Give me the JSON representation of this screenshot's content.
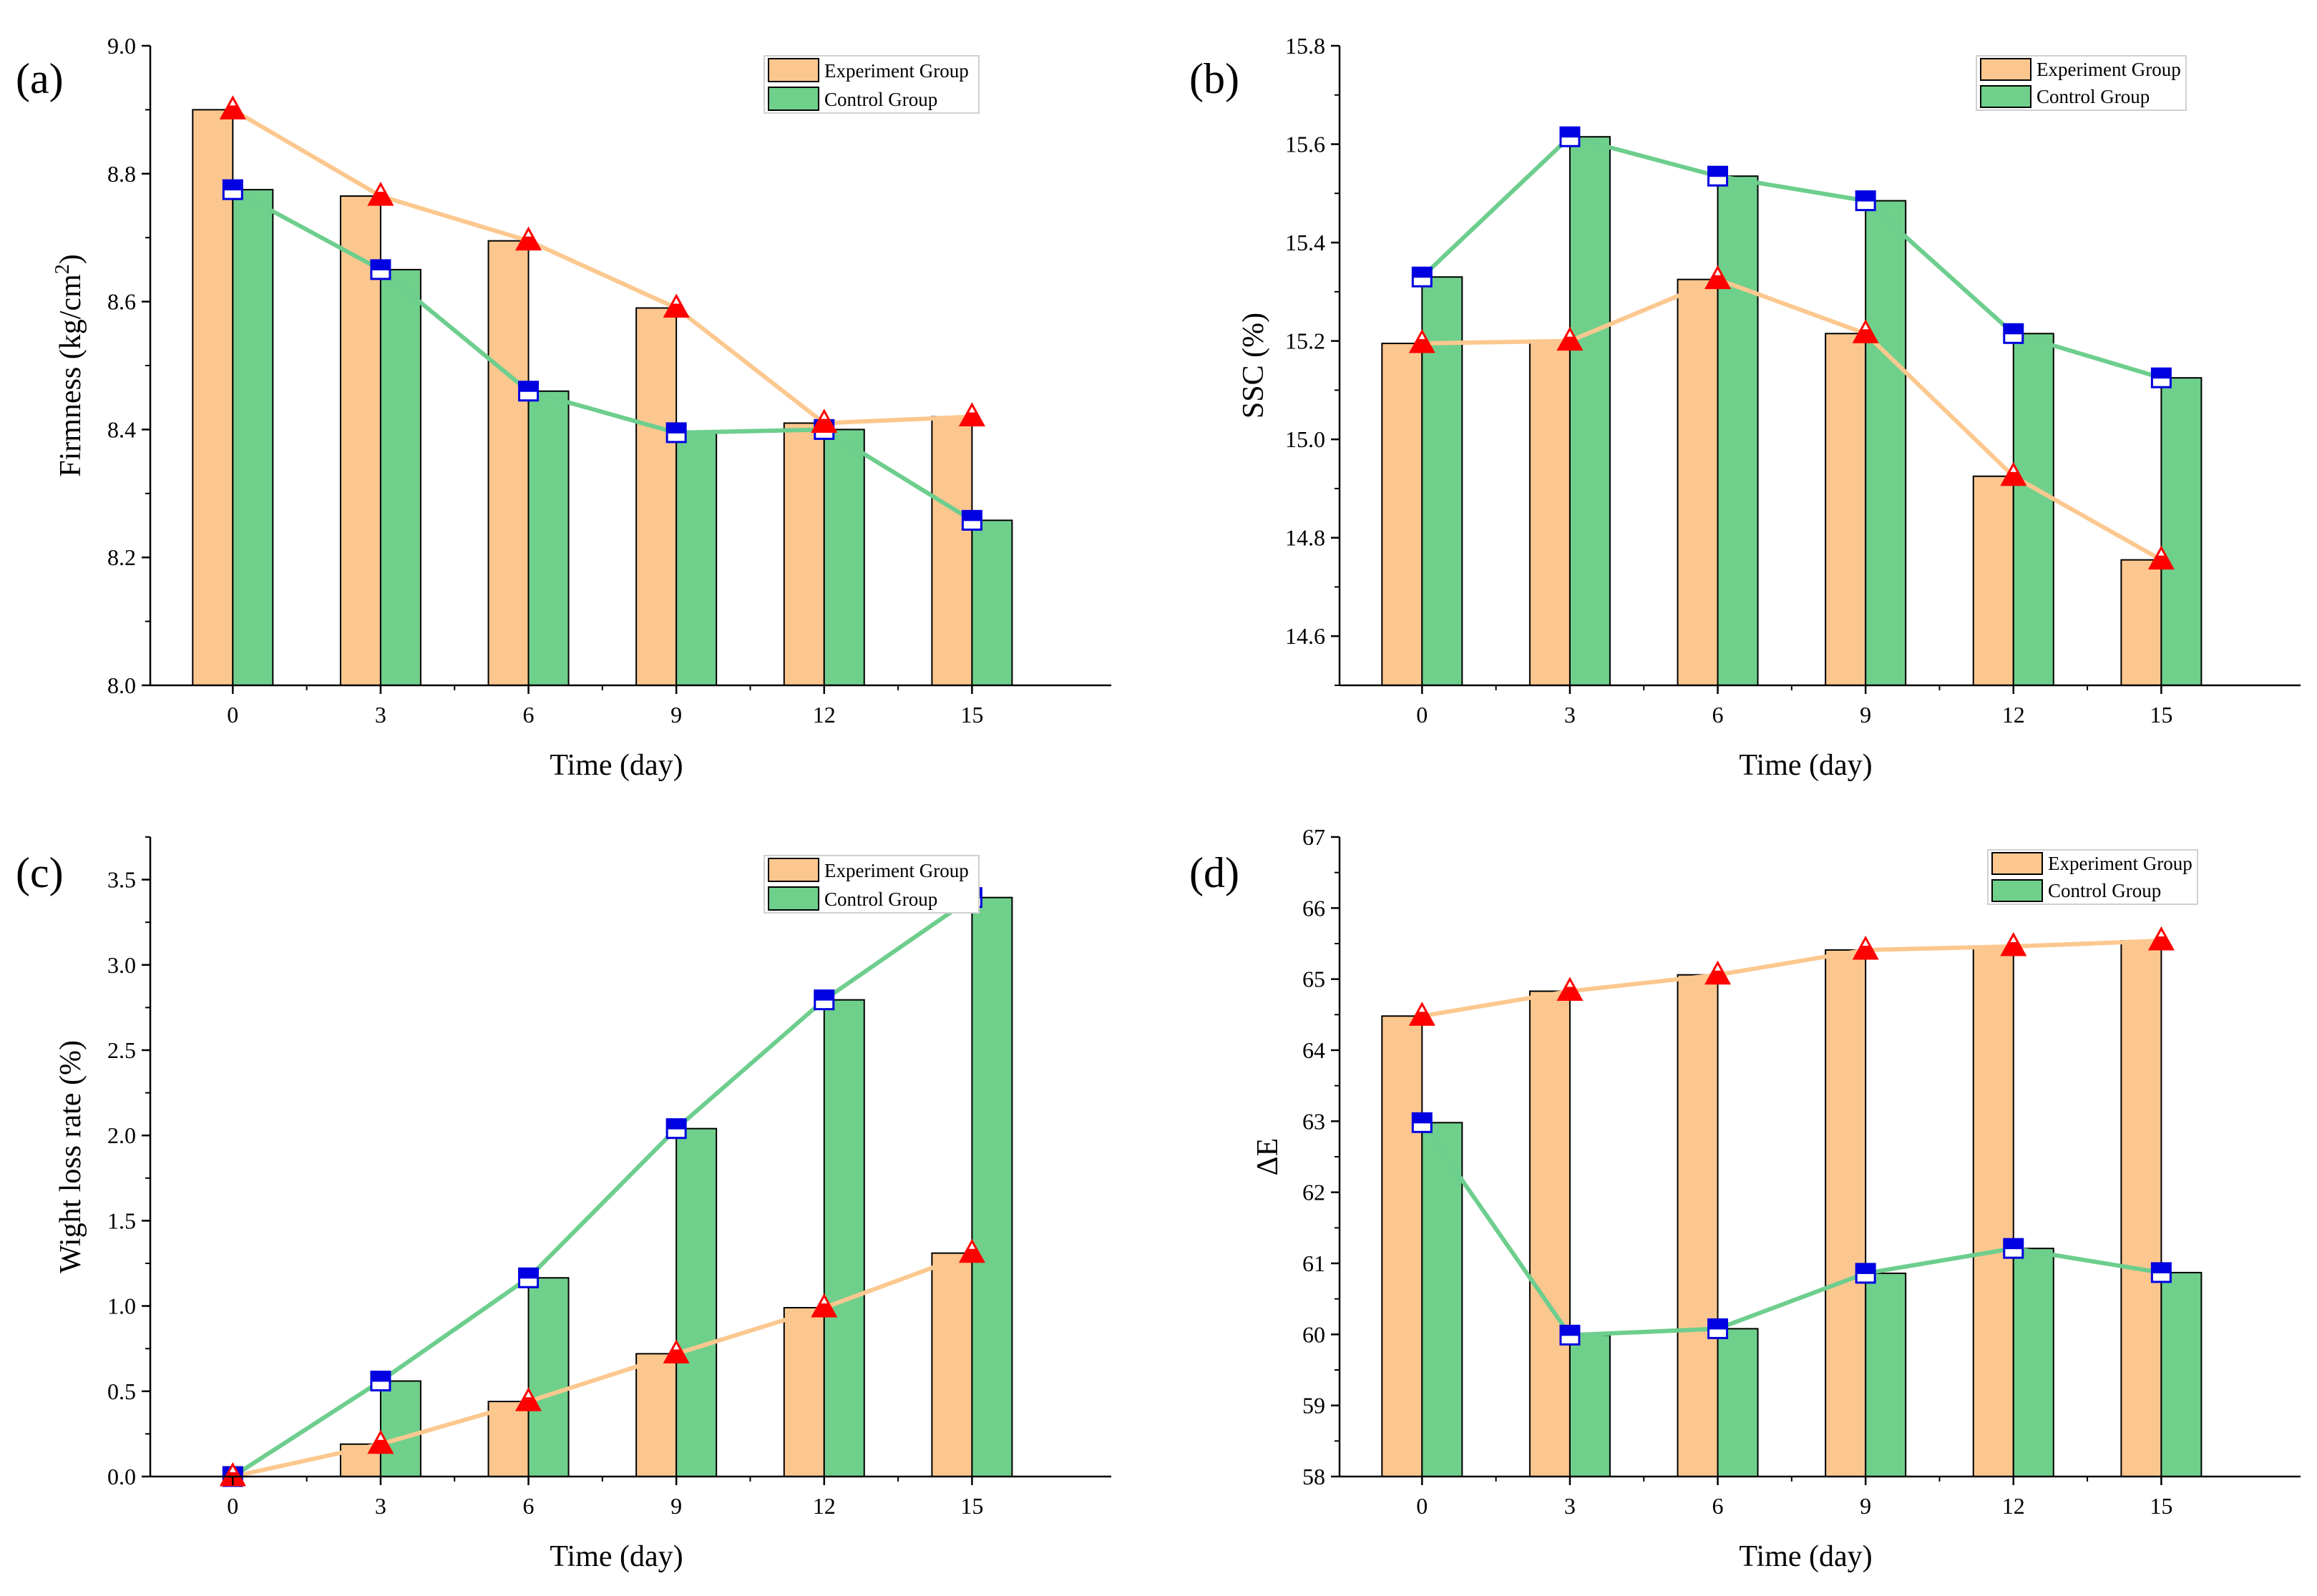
{
  "colors": {
    "experiment": "#fcc78f",
    "control": "#6fd08c",
    "experiment_line": "#fcc88f",
    "control_line": "#6dce8d",
    "triangle": "#ff0000",
    "square": "#0000e0"
  },
  "chart_data": [
    {
      "type": "bar",
      "panel_label": "(a)",
      "categories": [
        "0",
        "3",
        "6",
        "9",
        "12",
        "15"
      ],
      "series": [
        {
          "name": "Experiment Group",
          "values": [
            8.9,
            8.765,
            8.695,
            8.59,
            8.41,
            8.42
          ]
        },
        {
          "name": "Control Group",
          "values": [
            8.775,
            8.65,
            8.46,
            8.395,
            8.4,
            8.258
          ]
        }
      ],
      "legend": [
        "Experiment Group",
        "Control Group"
      ],
      "legend_position": "top-right",
      "xlabel": "Time (day)",
      "ylabel": "Firmness (kg/cm²)",
      "ylabel_main": "Firmness (kg/cm",
      "ylabel_sup": "2",
      "ylabel_end": ")",
      "ylim": [
        8.0,
        9.0
      ],
      "yticks": [
        "8.0",
        "8.2",
        "8.4",
        "8.6",
        "8.8",
        "9.0"
      ],
      "overlay": "line-with-markers"
    },
    {
      "type": "bar",
      "panel_label": "(b)",
      "categories": [
        "0",
        "3",
        "6",
        "9",
        "12",
        "15"
      ],
      "series": [
        {
          "name": "Experiment Group",
          "values": [
            15.195,
            15.2,
            15.325,
            15.215,
            14.925,
            14.755
          ]
        },
        {
          "name": "Control Group",
          "values": [
            15.33,
            15.615,
            15.535,
            15.485,
            15.215,
            15.125
          ]
        }
      ],
      "legend": [
        "Experiment Group",
        "Control Group"
      ],
      "legend_position": "top-right",
      "xlabel": "Time (day)",
      "ylabel": "SSC (%)",
      "ylim": [
        14.5,
        15.8
      ],
      "yticks": [
        "14.6",
        "14.8",
        "15.0",
        "15.2",
        "15.4",
        "15.6",
        "15.8"
      ],
      "overlay": "line-with-markers"
    },
    {
      "type": "bar",
      "panel_label": "(c)",
      "categories": [
        "0",
        "3",
        "6",
        "9",
        "12",
        "15"
      ],
      "series": [
        {
          "name": "Experiment Group",
          "values": [
            0.0,
            0.19,
            0.44,
            0.72,
            0.99,
            1.31
          ]
        },
        {
          "name": "Control Group",
          "values": [
            0.0,
            0.56,
            1.165,
            2.04,
            2.795,
            3.395
          ]
        }
      ],
      "legend": [
        "Experiment Group",
        "Control Group"
      ],
      "legend_position": "top-right",
      "xlabel": "Time (day)",
      "ylabel": "Wight loss rate (%)",
      "ylim": [
        0.0,
        3.75
      ],
      "yticks": [
        "0.0",
        "0.5",
        "1.0",
        "1.5",
        "2.0",
        "2.5",
        "3.0",
        "3.5"
      ],
      "overlay": "line-with-markers"
    },
    {
      "type": "bar",
      "panel_label": "(d)",
      "categories": [
        "0",
        "3",
        "6",
        "9",
        "12",
        "15"
      ],
      "series": [
        {
          "name": "Experiment Group",
          "values": [
            64.48,
            64.83,
            65.06,
            65.41,
            65.46,
            65.54
          ]
        },
        {
          "name": "Control Group",
          "values": [
            62.98,
            59.99,
            60.08,
            60.86,
            61.21,
            60.87
          ]
        }
      ],
      "legend": [
        "Experiment Group",
        "Control Group"
      ],
      "legend_position": "top-right",
      "xlabel": "Time (day)",
      "ylabel": "ΔE",
      "ylim": [
        58,
        67
      ],
      "yticks": [
        "58",
        "59",
        "60",
        "61",
        "62",
        "63",
        "64",
        "65",
        "66",
        "67"
      ],
      "overlay": "line-with-markers"
    }
  ]
}
